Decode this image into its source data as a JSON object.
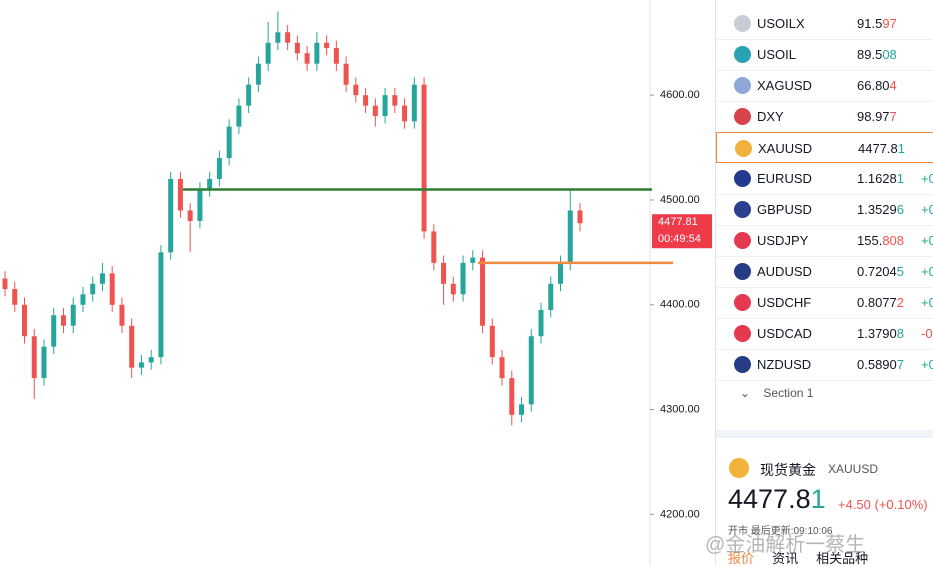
{
  "chart_data": {
    "type": "candlestick",
    "ylim": [
      4151.7,
      4690.8
    ],
    "yticks": [
      {
        "value": 4200,
        "label": "4200.00"
      },
      {
        "value": 4300,
        "label": "4300.00"
      },
      {
        "value": 4400,
        "label": "4400.00"
      },
      {
        "value": 4500,
        "label": "4500.00"
      },
      {
        "value": 4600,
        "label": "4600.00"
      }
    ],
    "up_color": "#26a69a",
    "down_color": "#ef5350",
    "candles": [
      {
        "o": 4425,
        "h": 4432,
        "l": 4408,
        "c": 4415
      },
      {
        "o": 4415,
        "h": 4422,
        "l": 4393,
        "c": 4400
      },
      {
        "o": 4400,
        "h": 4407,
        "l": 4363,
        "c": 4370
      },
      {
        "o": 4370,
        "h": 4377,
        "l": 4310,
        "c": 4330
      },
      {
        "o": 4330,
        "h": 4367,
        "l": 4323,
        "c": 4360
      },
      {
        "o": 4360,
        "h": 4397,
        "l": 4353,
        "c": 4390
      },
      {
        "o": 4390,
        "h": 4397,
        "l": 4373,
        "c": 4380
      },
      {
        "o": 4380,
        "h": 4407,
        "l": 4373,
        "c": 4400
      },
      {
        "o": 4400,
        "h": 4417,
        "l": 4393,
        "c": 4410
      },
      {
        "o": 4410,
        "h": 4427,
        "l": 4403,
        "c": 4420
      },
      {
        "o": 4420,
        "h": 4440,
        "l": 4413,
        "c": 4430
      },
      {
        "o": 4430,
        "h": 4437,
        "l": 4393,
        "c": 4400
      },
      {
        "o": 4400,
        "h": 4407,
        "l": 4373,
        "c": 4380
      },
      {
        "o": 4380,
        "h": 4387,
        "l": 4330,
        "c": 4340
      },
      {
        "o": 4340,
        "h": 4352,
        "l": 4333,
        "c": 4345
      },
      {
        "o": 4345,
        "h": 4357,
        "l": 4338,
        "c": 4350
      },
      {
        "o": 4350,
        "h": 4457,
        "l": 4343,
        "c": 4450
      },
      {
        "o": 4450,
        "h": 4527,
        "l": 4443,
        "c": 4520
      },
      {
        "o": 4520,
        "h": 4527,
        "l": 4483,
        "c": 4490
      },
      {
        "o": 4490,
        "h": 4497,
        "l": 4450,
        "c": 4480
      },
      {
        "o": 4480,
        "h": 4517,
        "l": 4473,
        "c": 4510
      },
      {
        "o": 4510,
        "h": 4527,
        "l": 4503,
        "c": 4520
      },
      {
        "o": 4520,
        "h": 4547,
        "l": 4513,
        "c": 4540
      },
      {
        "o": 4540,
        "h": 4577,
        "l": 4533,
        "c": 4570
      },
      {
        "o": 4570,
        "h": 4597,
        "l": 4563,
        "c": 4590
      },
      {
        "o": 4590,
        "h": 4617,
        "l": 4583,
        "c": 4610
      },
      {
        "o": 4610,
        "h": 4637,
        "l": 4603,
        "c": 4630
      },
      {
        "o": 4630,
        "h": 4670,
        "l": 4623,
        "c": 4650
      },
      {
        "o": 4650,
        "h": 4680,
        "l": 4643,
        "c": 4660
      },
      {
        "o": 4660,
        "h": 4667,
        "l": 4643,
        "c": 4650
      },
      {
        "o": 4650,
        "h": 4657,
        "l": 4633,
        "c": 4640
      },
      {
        "o": 4640,
        "h": 4647,
        "l": 4623,
        "c": 4630
      },
      {
        "o": 4630,
        "h": 4660,
        "l": 4623,
        "c": 4650
      },
      {
        "o": 4650,
        "h": 4657,
        "l": 4638,
        "c": 4645
      },
      {
        "o": 4645,
        "h": 4652,
        "l": 4623,
        "c": 4630
      },
      {
        "o": 4630,
        "h": 4637,
        "l": 4603,
        "c": 4610
      },
      {
        "o": 4610,
        "h": 4617,
        "l": 4593,
        "c": 4600
      },
      {
        "o": 4600,
        "h": 4607,
        "l": 4583,
        "c": 4590
      },
      {
        "o": 4590,
        "h": 4597,
        "l": 4570,
        "c": 4580
      },
      {
        "o": 4580,
        "h": 4607,
        "l": 4573,
        "c": 4600
      },
      {
        "o": 4600,
        "h": 4607,
        "l": 4583,
        "c": 4590
      },
      {
        "o": 4590,
        "h": 4597,
        "l": 4568,
        "c": 4575
      },
      {
        "o": 4575,
        "h": 4617,
        "l": 4568,
        "c": 4610
      },
      {
        "o": 4610,
        "h": 4617,
        "l": 4463,
        "c": 4470
      },
      {
        "o": 4470,
        "h": 4477,
        "l": 4433,
        "c": 4440
      },
      {
        "o": 4440,
        "h": 4447,
        "l": 4400,
        "c": 4420
      },
      {
        "o": 4420,
        "h": 4427,
        "l": 4403,
        "c": 4410
      },
      {
        "o": 4410,
        "h": 4447,
        "l": 4403,
        "c": 4440
      },
      {
        "o": 4440,
        "h": 4452,
        "l": 4433,
        "c": 4445
      },
      {
        "o": 4445,
        "h": 4452,
        "l": 4373,
        "c": 4380
      },
      {
        "o": 4380,
        "h": 4387,
        "l": 4343,
        "c": 4350
      },
      {
        "o": 4350,
        "h": 4357,
        "l": 4323,
        "c": 4330
      },
      {
        "o": 4330,
        "h": 4337,
        "l": 4285,
        "c": 4295
      },
      {
        "o": 4295,
        "h": 4312,
        "l": 4288,
        "c": 4305
      },
      {
        "o": 4305,
        "h": 4377,
        "l": 4298,
        "c": 4370
      },
      {
        "o": 4370,
        "h": 4402,
        "l": 4363,
        "c": 4395
      },
      {
        "o": 4395,
        "h": 4427,
        "l": 4388,
        "c": 4420
      },
      {
        "o": 4420,
        "h": 4447,
        "l": 4413,
        "c": 4440
      },
      {
        "o": 4440,
        "h": 4510,
        "l": 4433,
        "c": 4490
      },
      {
        "o": 4490,
        "h": 4497,
        "l": 4470,
        "c": 4477.81
      }
    ],
    "hlines": [
      {
        "value": 4510,
        "color": "#2e7d32"
      },
      {
        "value": 4440,
        "color": "#f0883e"
      }
    ],
    "price_label": "4477.81",
    "countdown": "00:49:54"
  },
  "watchlist": [
    {
      "symbol": "USOILX",
      "price_main": "91.5",
      "price_tail": "97",
      "tail_color": "#ef5350",
      "change": "",
      "icon": "#c8ccd4"
    },
    {
      "symbol": "USOIL",
      "price_main": "89.5",
      "price_tail": "08",
      "tail_color": "#26a69a",
      "change": "",
      "icon": "#2aa1b5"
    },
    {
      "symbol": "XAGUSD",
      "price_main": "66.80",
      "price_tail": "4",
      "tail_color": "#ef5350",
      "change": "",
      "icon": "#8ea6d8"
    },
    {
      "symbol": "DXY",
      "price_main": "98.97",
      "price_tail": "7",
      "tail_color": "#ef5350",
      "change": "",
      "icon": "#d9434e"
    },
    {
      "symbol": "XAUUSD",
      "price_main": "4477.8",
      "price_tail": "1",
      "tail_color": "#26a69a",
      "change": "",
      "icon": "#f2b13b"
    },
    {
      "symbol": "EURUSD",
      "price_main": "1.1628",
      "price_tail": "1",
      "tail_color": "#26a69a",
      "change": "+0",
      "icon": "#243a8c"
    },
    {
      "symbol": "GBPUSD",
      "price_main": "1.3529",
      "price_tail": "6",
      "tail_color": "#26a69a",
      "change": "+0",
      "icon": "#2b3f8f"
    },
    {
      "symbol": "USDJPY",
      "price_main": "155.",
      "price_tail": "808",
      "tail_color": "#ef5350",
      "change": "+0",
      "icon": "#e53950"
    },
    {
      "symbol": "AUDUSD",
      "price_main": "0.7204",
      "price_tail": "5",
      "tail_color": "#26a69a",
      "change": "+0",
      "icon": "#263c84"
    },
    {
      "symbol": "USDCHF",
      "price_main": "0.8077",
      "price_tail": "2",
      "tail_color": "#ef5350",
      "change": "+0",
      "icon": "#e53950"
    },
    {
      "symbol": "USDCAD",
      "price_main": "1.3790",
      "price_tail": "8",
      "tail_color": "#26a69a",
      "change": "-0",
      "icon": "#e53950"
    },
    {
      "symbol": "NZDUSD",
      "price_main": "0.5890",
      "price_tail": "7",
      "tail_color": "#26a69a",
      "change": "+0",
      "icon": "#263c84"
    }
  ],
  "section": "Section 1",
  "detail": {
    "name": "现货黄金",
    "symbol": "XAUUSD",
    "price_main": "4477.8",
    "price_tail": "1",
    "change": "+4.50 (+0.10%)",
    "status": "开市",
    "updated": "最后更新:09:10:06",
    "tabs": [
      "报价",
      "资讯",
      "相关品种"
    ]
  },
  "watermark": "@金油解析一蔡生"
}
